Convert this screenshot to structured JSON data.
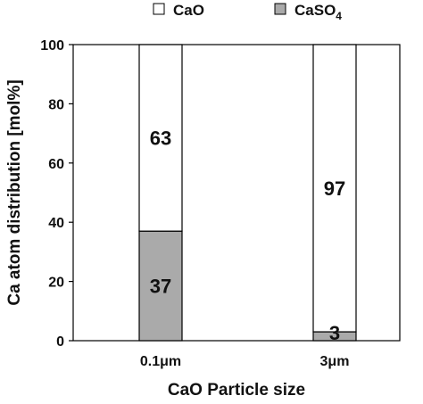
{
  "chart_data": {
    "type": "bar",
    "stacked": true,
    "categories": [
      "0.1μm",
      "3μm"
    ],
    "series": [
      {
        "name": "CaSO",
        "name_subscript": "4",
        "values": [
          37,
          3
        ],
        "color": "#aaaaaa"
      },
      {
        "name": "CaO",
        "values": [
          63,
          97
        ],
        "color": "#ffffff"
      }
    ],
    "legend_order": [
      1,
      0
    ],
    "data_labels": [
      [
        "37",
        "3"
      ],
      [
        "63",
        "97"
      ]
    ],
    "xlabel": "CaO Particle size",
    "ylabel": "Ca atom distribution [mol%]",
    "ylim": [
      0,
      100
    ],
    "yticks": [
      0,
      20,
      40,
      60,
      80,
      100
    ],
    "grid": false,
    "legend_position": "top"
  }
}
